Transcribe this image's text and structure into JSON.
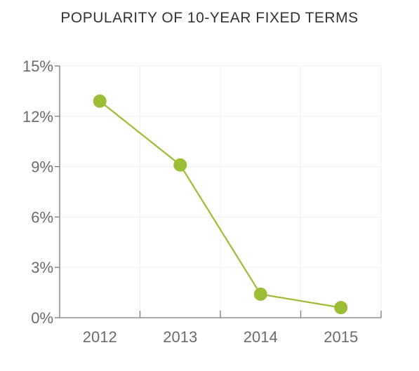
{
  "chart_data": {
    "type": "line",
    "title": "POPULARITY OF 10-YEAR FIXED TERMS",
    "xlabel": "",
    "ylabel": "",
    "categories": [
      "2012",
      "2013",
      "2014",
      "2015"
    ],
    "series": [
      {
        "values": [
          12.9,
          9.1,
          1.4,
          0.6
        ],
        "color": "#9cbd35"
      }
    ],
    "ylim": [
      0,
      15
    ],
    "yticks": [
      0,
      3,
      6,
      9,
      12,
      15
    ],
    "ytick_labels": [
      "0%",
      "3%",
      "6%",
      "9%",
      "12%",
      "15%"
    ],
    "grid": true,
    "legend": "none"
  }
}
